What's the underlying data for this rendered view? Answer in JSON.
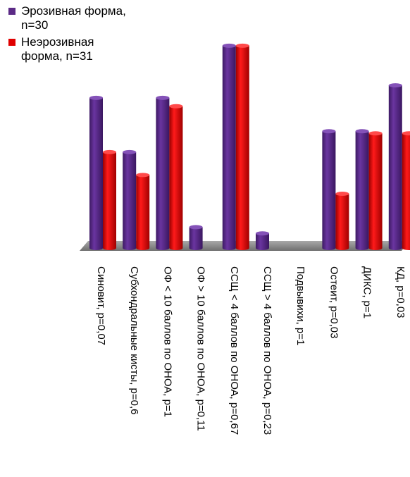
{
  "chart_data": {
    "type": "bar",
    "categories": [
      "Синовит, p=0,07",
      "Субхондральные кисты, p=0,6",
      "ОФ < 10 баллов по ОНОА, p=1",
      "ОФ > 10 баллов по ОНОА, p=0,11",
      "ССЩ < 4 баллов по ОНОА, p=0,67",
      "ССЩ > 4 баллов по ОНОА, p=0,23",
      "Подвывихи, p=1",
      "Остеит, p=0,03",
      "ДИКС, p=1",
      "КД, p=0,03"
    ],
    "series": [
      {
        "name": "Эрозивная форма, n=30",
        "color": "#5b2a86",
        "values": [
          72,
          46,
          72,
          10,
          97,
          7,
          0,
          56,
          56,
          78
        ]
      },
      {
        "name": "Неэрозивная форма, n=31",
        "color": "#e00000",
        "values": [
          46,
          35,
          68,
          0,
          97,
          0,
          0,
          26,
          55,
          55
        ]
      }
    ],
    "ylim": [
      0,
      100
    ],
    "grid": false,
    "legend_position": "top-left",
    "three_d": true
  }
}
